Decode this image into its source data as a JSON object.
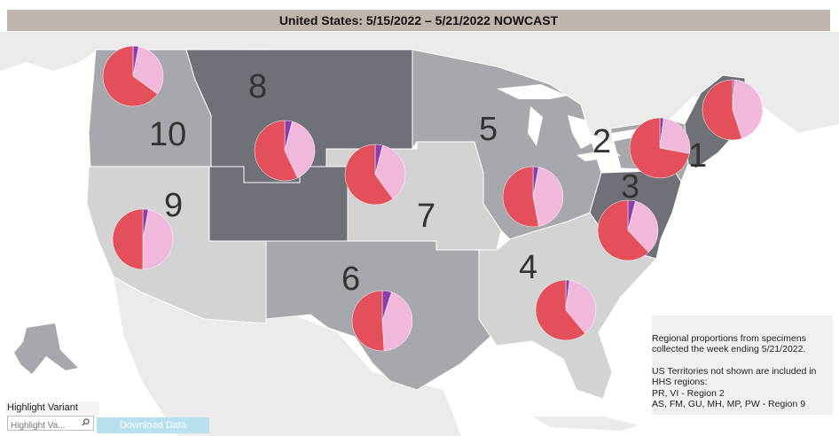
{
  "title": "United States: 5/15/2022 – 5/21/2022 NOWCAST",
  "colors": {
    "title_bar": "#bfb4ae",
    "region_light": "#d3d3d3",
    "region_mid": "#a6a8ad",
    "region_dark": "#6f7178",
    "pie_red": "#e34f5b",
    "pie_pink": "#f2b8dc",
    "pie_purple": "#8a3fa8",
    "download_button": "#b9e0ef"
  },
  "regions": [
    {
      "id": "1",
      "label": "1"
    },
    {
      "id": "2",
      "label": "2"
    },
    {
      "id": "3",
      "label": "3"
    },
    {
      "id": "4",
      "label": "4"
    },
    {
      "id": "5",
      "label": "5"
    },
    {
      "id": "6",
      "label": "6"
    },
    {
      "id": "7",
      "label": "7"
    },
    {
      "id": "8",
      "label": "8"
    },
    {
      "id": "9",
      "label": "9"
    },
    {
      "id": "10",
      "label": "10"
    }
  ],
  "pies": [
    {
      "region": "10",
      "slices": [
        0.65,
        0.32,
        0.03
      ]
    },
    {
      "region": "8",
      "slices": [
        0.57,
        0.39,
        0.04
      ]
    },
    {
      "region": "7",
      "slices": [
        0.6,
        0.36,
        0.04
      ]
    },
    {
      "region": "5",
      "slices": [
        0.53,
        0.44,
        0.03
      ]
    },
    {
      "region": "2",
      "slices": [
        0.72,
        0.26,
        0.02
      ]
    },
    {
      "region": "1",
      "slices": [
        0.55,
        0.44,
        0.01
      ]
    },
    {
      "region": "9",
      "slices": [
        0.5,
        0.47,
        0.03
      ]
    },
    {
      "region": "3",
      "slices": [
        0.62,
        0.34,
        0.04
      ]
    },
    {
      "region": "6",
      "slices": [
        0.51,
        0.44,
        0.05
      ]
    },
    {
      "region": "4",
      "slices": [
        0.61,
        0.37,
        0.02
      ]
    }
  ],
  "note": {
    "line1": "Regional proportions from specimens",
    "line2": "collected the week ending 5/21/2022.",
    "line3": "US Territories not shown are included in",
    "line4": "HHS regions:",
    "line5": "PR, VI - Region 2",
    "line6": "AS, FM, GU, MH, MP, PW - Region 9"
  },
  "highlight": {
    "label": "Highlight Variant",
    "placeholder": "Highlight Va..."
  },
  "download_label": "Download Data"
}
